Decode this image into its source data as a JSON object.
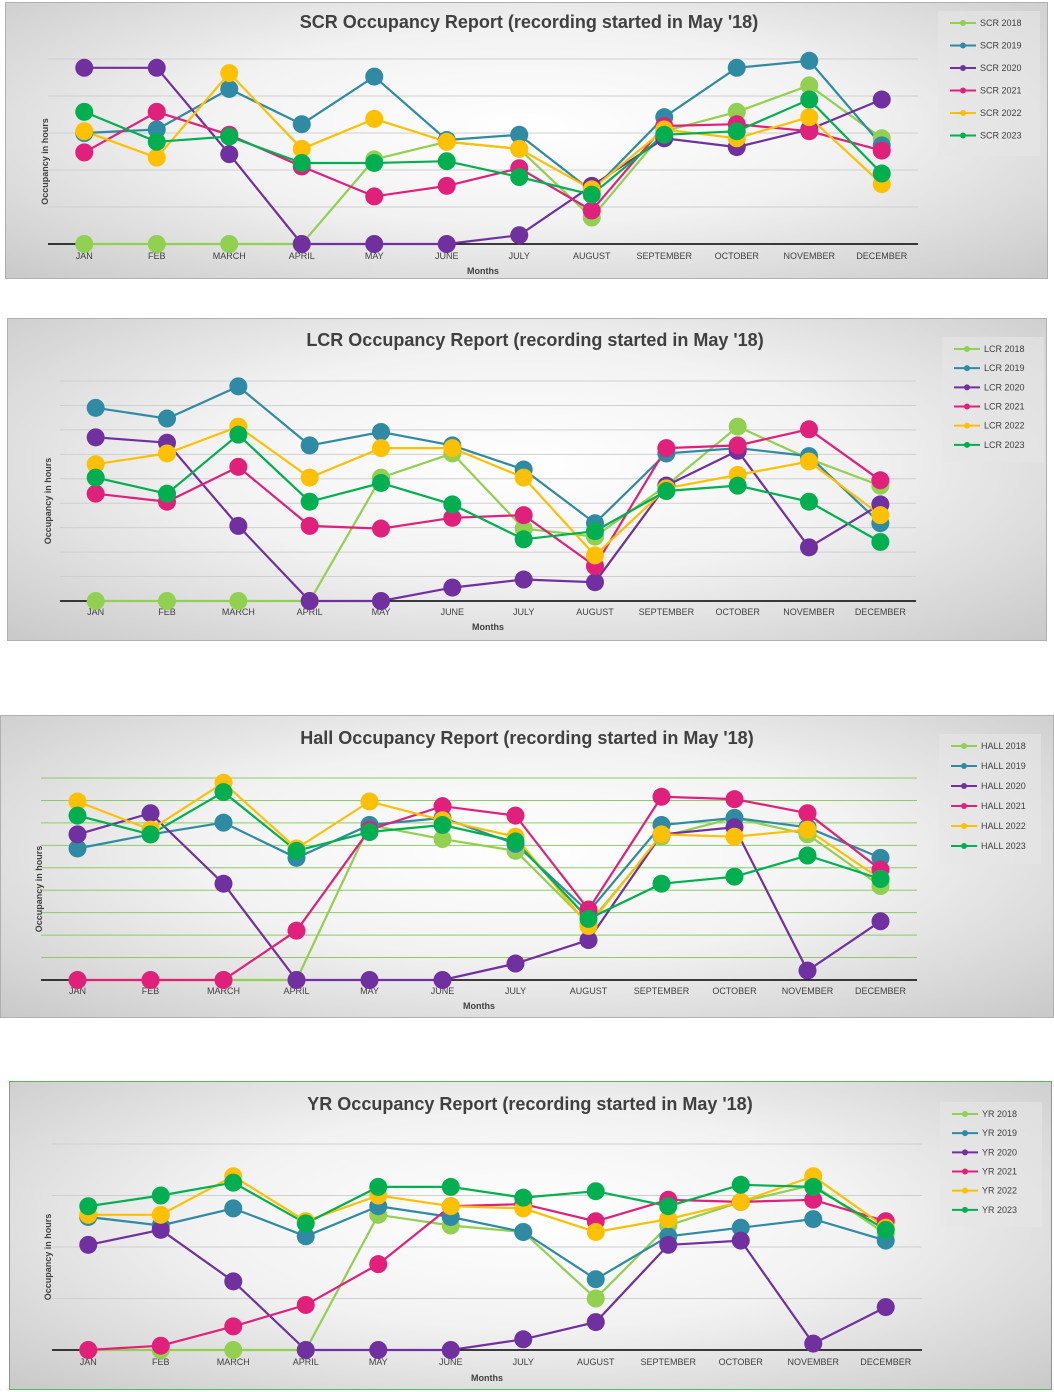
{
  "months_axis_label": "Months",
  "colors": {
    "c2018": "#92d050",
    "c2019": "#2e8ba3",
    "c2020": "#7030a0",
    "c2021": "#e0207a",
    "c2022": "#ffc000",
    "c2023": "#00b050"
  },
  "chart_data": [
    {
      "type": "line",
      "title": "SCR  Occupancy Report (recording started in May '18)",
      "xlabel": "Months",
      "ylabel": "Occupancy in hours",
      "ylim": [
        0,
        100
      ],
      "grid": true,
      "legend": "right",
      "categories": [
        "JAN",
        "FEB",
        "MARCH",
        "APRIL",
        "MAY",
        "JUNE",
        "JULY",
        "AUGUST",
        "SEPTEMBER",
        "OCTOBER",
        "NOVEMBER",
        "DECEMBER"
      ],
      "series": [
        {
          "name": "SCR 2018",
          "color": "c2018",
          "values": [
            0,
            0,
            0,
            0,
            48,
            58,
            54,
            15,
            64,
            75,
            90,
            60
          ]
        },
        {
          "name": "SCR 2019",
          "color": "c2019",
          "values": [
            63,
            65,
            88,
            68,
            95,
            59,
            62,
            30,
            72,
            100,
            104,
            56
          ]
        },
        {
          "name": "SCR 2020",
          "color": "c2020",
          "values": [
            100,
            100,
            51,
            0,
            0,
            0,
            5,
            33,
            60,
            55,
            65,
            82
          ]
        },
        {
          "name": "SCR 2021",
          "color": "c2021",
          "values": [
            52,
            75,
            62,
            44,
            27,
            33,
            43,
            19,
            67,
            68,
            64,
            53
          ]
        },
        {
          "name": "SCR 2022",
          "color": "c2022",
          "values": [
            64,
            49,
            97,
            54,
            71,
            58,
            54,
            31,
            65,
            60,
            72,
            34
          ]
        },
        {
          "name": "SCR 2023",
          "color": "c2023",
          "values": [
            75,
            58,
            61,
            46,
            46,
            47,
            38,
            28,
            62,
            64,
            82,
            40
          ]
        }
      ],
      "gridlines": 5
    },
    {
      "type": "line",
      "title": "LCR  Occupancy Report (recording started in May '18)",
      "xlabel": "Months",
      "ylabel": "Occupancy in hours",
      "ylim": [
        0,
        100
      ],
      "grid": true,
      "legend": "right",
      "categories": [
        "JAN",
        "FEB",
        "MARCH",
        "APRIL",
        "MAY",
        "JUNE",
        "JULY",
        "AUGUST",
        "SEPTEMBER",
        "OCTOBER",
        "NOVEMBER",
        "DECEMBER"
      ],
      "series": [
        {
          "name": "LCR 2018",
          "color": "c2018",
          "values": [
            0,
            0,
            0,
            0,
            46,
            55,
            27,
            24,
            43,
            65,
            53,
            43
          ]
        },
        {
          "name": "LCR 2019",
          "color": "c2019",
          "values": [
            72,
            68,
            80,
            58,
            63,
            58,
            49,
            29,
            55,
            57,
            54,
            29
          ]
        },
        {
          "name": "LCR 2020",
          "color": "c2020",
          "values": [
            61,
            59,
            28,
            0,
            0,
            5,
            8,
            7,
            43,
            56,
            20,
            36
          ]
        },
        {
          "name": "LCR 2021",
          "color": "c2021",
          "values": [
            40,
            37,
            50,
            28,
            27,
            31,
            32,
            13,
            57,
            58,
            64,
            45
          ]
        },
        {
          "name": "LCR 2022",
          "color": "c2022",
          "values": [
            51,
            55,
            65,
            46,
            57,
            57,
            46,
            17,
            42,
            47,
            52,
            32
          ]
        },
        {
          "name": "LCR 2023",
          "color": "c2023",
          "values": [
            46,
            40,
            62,
            37,
            44,
            36,
            23,
            26,
            41,
            43,
            37,
            22
          ]
        }
      ],
      "gridlines": 9
    },
    {
      "type": "line",
      "title": "Hall  Occupancy Report (recording started in May '18)",
      "xlabel": "Months",
      "ylabel": "Occupancy in hours",
      "ylim": [
        0,
        100
      ],
      "grid": true,
      "legend": "right",
      "categories": [
        "JAN",
        "FEB",
        "MARCH",
        "APRIL",
        "MAY",
        "JUNE",
        "JULY",
        "AUGUST",
        "SEPTEMBER",
        "OCTOBER",
        "NOVEMBER",
        "DECEMBER"
      ],
      "series": [
        {
          "name": "HALL 2018",
          "color": "c2018",
          "values": [
            0,
            0,
            0,
            0,
            66,
            60,
            55,
            24,
            61,
            69,
            62,
            40
          ]
        },
        {
          "name": "HALL 2019",
          "color": "c2019",
          "values": [
            56,
            62,
            67,
            52,
            66,
            69,
            58,
            29,
            66,
            69,
            65,
            52
          ]
        },
        {
          "name": "HALL 2020",
          "color": "c2020",
          "values": [
            62,
            71,
            41,
            0,
            0,
            0,
            7,
            17,
            62,
            65,
            4,
            25
          ]
        },
        {
          "name": "HALL 2021",
          "color": "c2021",
          "values": [
            0,
            0,
            0,
            21,
            64,
            74,
            70,
            30,
            78,
            77,
            71,
            47
          ]
        },
        {
          "name": "HALL 2022",
          "color": "c2022",
          "values": [
            76,
            64,
            84,
            56,
            76,
            68,
            61,
            23,
            62,
            61,
            64,
            43
          ]
        },
        {
          "name": "HALL 2023",
          "color": "c2023",
          "values": [
            70,
            62,
            80,
            55,
            63,
            66,
            59,
            26,
            41,
            44,
            53,
            43
          ]
        }
      ],
      "gridlines": 9
    },
    {
      "type": "line",
      "title": "YR  Occupancy Report (recording started in May '18)",
      "xlabel": "Months",
      "ylabel": "Occupancy in hours",
      "ylim": [
        0,
        100
      ],
      "grid": true,
      "legend": "right",
      "categories": [
        "JAN",
        "FEB",
        "MARCH",
        "APRIL",
        "MAY",
        "JUNE",
        "JULY",
        "AUGUST",
        "SEPTEMBER",
        "OCTOBER",
        "NOVEMBER",
        "DECEMBER"
      ],
      "series": [
        {
          "name": "YR 2018",
          "color": "c2018",
          "values": [
            0,
            0,
            0,
            0,
            63,
            58,
            55,
            24,
            58,
            69,
            77,
            54
          ]
        },
        {
          "name": "YR 2019",
          "color": "c2019",
          "values": [
            62,
            58,
            66,
            53,
            67,
            62,
            55,
            33,
            53,
            57,
            61,
            51
          ]
        },
        {
          "name": "YR 2020",
          "color": "c2020",
          "values": [
            49,
            56,
            32,
            0,
            0,
            0,
            5,
            13,
            49,
            51,
            3,
            20
          ]
        },
        {
          "name": "YR 2021",
          "color": "c2021",
          "values": [
            0,
            2,
            11,
            21,
            40,
            67,
            68,
            60,
            70,
            69,
            70,
            60
          ]
        },
        {
          "name": "YR 2022",
          "color": "c2022",
          "values": [
            63,
            63,
            81,
            60,
            72,
            67,
            66,
            55,
            61,
            69,
            81,
            57
          ]
        },
        {
          "name": "YR 2023",
          "color": "c2023",
          "values": [
            67,
            72,
            78,
            59,
            76,
            76,
            71,
            74,
            67,
            77,
            76,
            56
          ]
        }
      ],
      "gridlines": 4
    }
  ]
}
